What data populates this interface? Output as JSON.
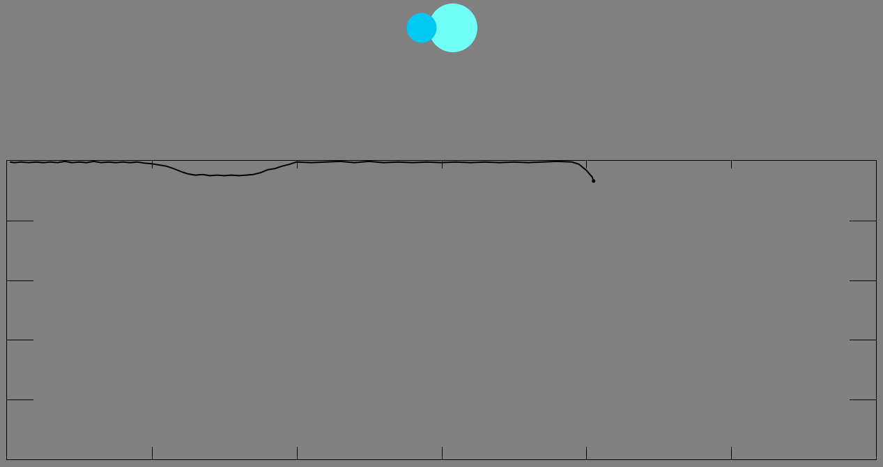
{
  "colors": {
    "background": "#808080",
    "frame": "#000000",
    "trace": "#000000",
    "circle_small": "#00c8f5",
    "circle_large": "#70fff5"
  },
  "indicators": [
    {
      "name": "circle-small-icon",
      "color": "#00c8f5"
    },
    {
      "name": "circle-large-icon",
      "color": "#70fff5"
    }
  ],
  "chart_data": {
    "type": "line",
    "title": "",
    "xlabel": "",
    "ylabel": "",
    "xlim": [
      0,
      6
    ],
    "ylim": [
      -5,
      0
    ],
    "grid": false,
    "legend": "none",
    "x_ticks": [
      1,
      2,
      3,
      4,
      5
    ],
    "y_ticks": [
      -1,
      -2,
      -3,
      -4
    ],
    "series": [
      {
        "points": [
          [
            0.02,
            -0.02
          ],
          [
            0.05,
            -0.03
          ],
          [
            0.1,
            -0.02
          ],
          [
            0.15,
            -0.03
          ],
          [
            0.2,
            -0.02
          ],
          [
            0.25,
            -0.03
          ],
          [
            0.3,
            -0.02
          ],
          [
            0.35,
            -0.03
          ],
          [
            0.4,
            -0.01
          ],
          [
            0.45,
            -0.03
          ],
          [
            0.5,
            -0.02
          ],
          [
            0.55,
            -0.03
          ],
          [
            0.6,
            -0.01
          ],
          [
            0.65,
            -0.03
          ],
          [
            0.7,
            -0.02
          ],
          [
            0.75,
            -0.03
          ],
          [
            0.8,
            -0.02
          ],
          [
            0.85,
            -0.03
          ],
          [
            0.9,
            -0.02
          ],
          [
            0.95,
            -0.04
          ],
          [
            1.0,
            -0.05
          ],
          [
            1.05,
            -0.07
          ],
          [
            1.1,
            -0.09
          ],
          [
            1.15,
            -0.13
          ],
          [
            1.2,
            -0.18
          ],
          [
            1.25,
            -0.22
          ],
          [
            1.3,
            -0.24
          ],
          [
            1.35,
            -0.23
          ],
          [
            1.4,
            -0.25
          ],
          [
            1.45,
            -0.24
          ],
          [
            1.5,
            -0.25
          ],
          [
            1.55,
            -0.24
          ],
          [
            1.6,
            -0.25
          ],
          [
            1.65,
            -0.24
          ],
          [
            1.7,
            -0.23
          ],
          [
            1.75,
            -0.2
          ],
          [
            1.8,
            -0.15
          ],
          [
            1.85,
            -0.13
          ],
          [
            1.9,
            -0.09
          ],
          [
            1.95,
            -0.06
          ],
          [
            2.0,
            -0.02
          ],
          [
            2.1,
            -0.03
          ],
          [
            2.2,
            -0.02
          ],
          [
            2.3,
            -0.01
          ],
          [
            2.4,
            -0.03
          ],
          [
            2.5,
            -0.01
          ],
          [
            2.6,
            -0.03
          ],
          [
            2.7,
            -0.02
          ],
          [
            2.8,
            -0.03
          ],
          [
            2.9,
            -0.02
          ],
          [
            3.0,
            -0.03
          ],
          [
            3.1,
            -0.02
          ],
          [
            3.2,
            -0.03
          ],
          [
            3.3,
            -0.02
          ],
          [
            3.4,
            -0.03
          ],
          [
            3.5,
            -0.02
          ],
          [
            3.6,
            -0.03
          ],
          [
            3.7,
            -0.02
          ],
          [
            3.8,
            -0.01
          ],
          [
            3.9,
            -0.02
          ],
          [
            3.95,
            -0.06
          ],
          [
            4.0,
            -0.16
          ],
          [
            4.04,
            -0.27
          ],
          [
            4.05,
            -0.34
          ]
        ]
      }
    ]
  }
}
